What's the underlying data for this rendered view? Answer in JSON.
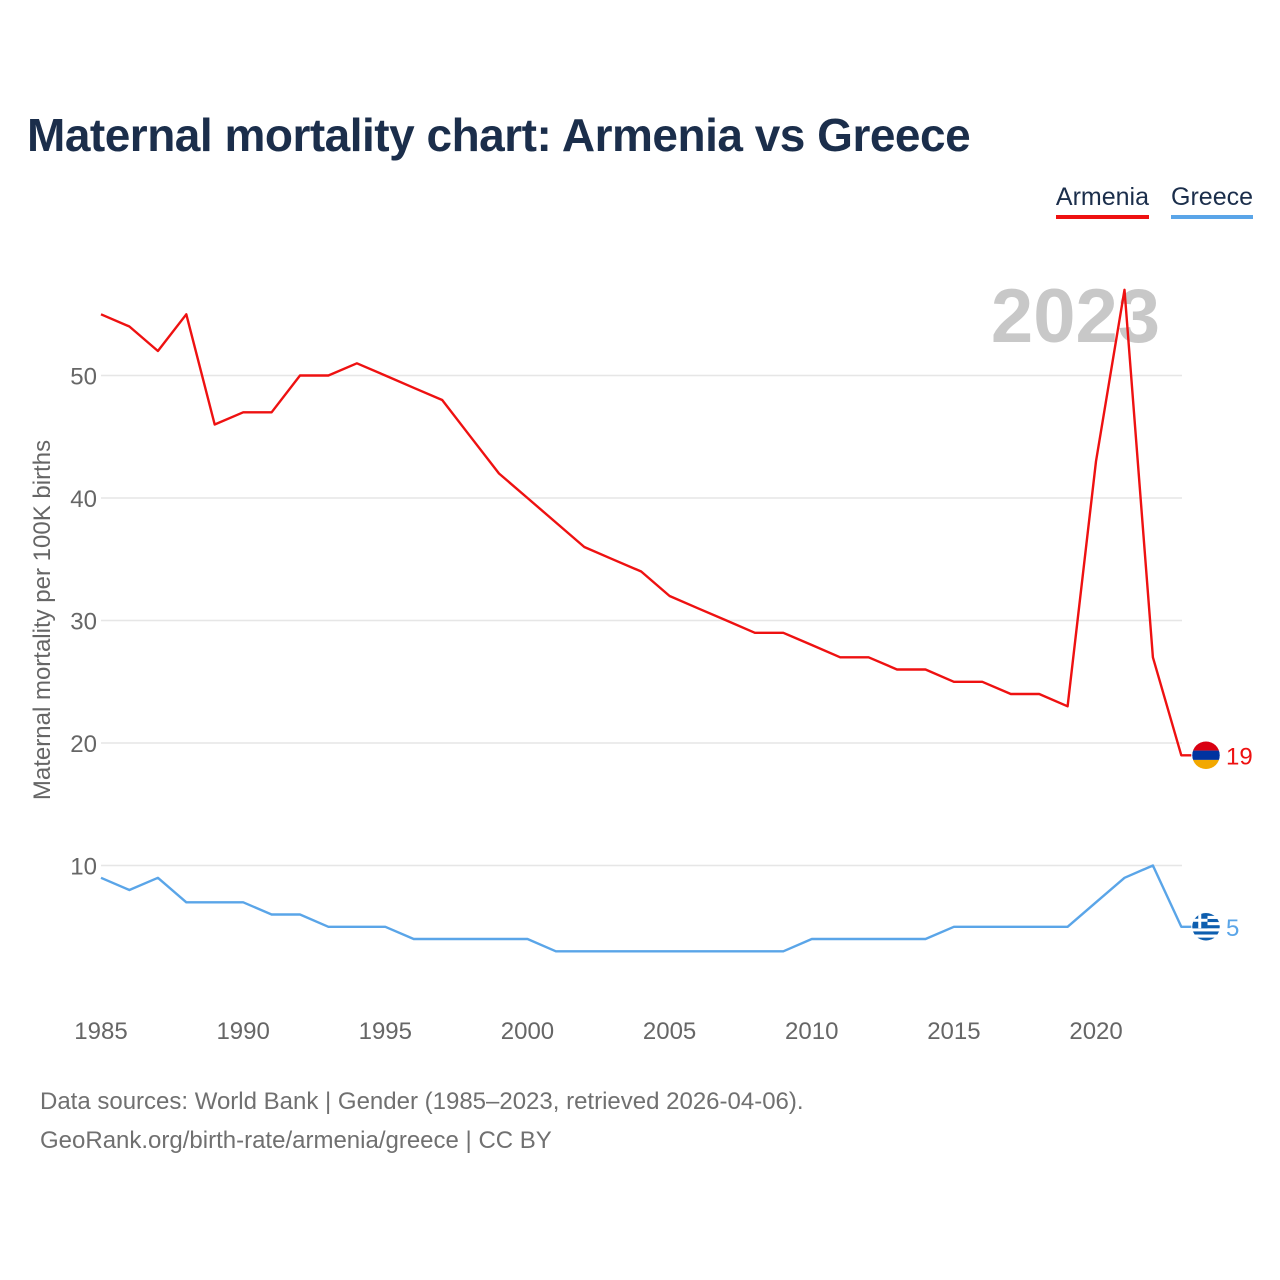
{
  "title": "Maternal mortality chart: Armenia vs Greece",
  "legend": {
    "armenia": "Armenia",
    "greece": "Greece"
  },
  "colors": {
    "armenia": "#ee1111",
    "greece": "#5aa5e8",
    "grid": "#e6e6e6",
    "year": "#c8c8c8",
    "text": "#666666"
  },
  "watermark_year": "2023",
  "sources": {
    "line1": "Data sources: World Bank | Gender (1985–2023, retrieved 2026-04-06).",
    "line2": "GeoRank.org/birth-rate/armenia/greece | CC BY"
  },
  "chart_data": {
    "type": "line",
    "title": "Maternal mortality chart: Armenia vs Greece",
    "xlabel": "",
    "ylabel": "Maternal mortality per 100K births",
    "xlim": [
      1985,
      2023
    ],
    "ylim": [
      0,
      55
    ],
    "yticks": [
      10,
      20,
      30,
      40,
      50
    ],
    "xticks": [
      1985,
      1990,
      1995,
      2000,
      2005,
      2010,
      2015,
      2020
    ],
    "x": [
      1985,
      1986,
      1987,
      1988,
      1989,
      1990,
      1991,
      1992,
      1993,
      1994,
      1995,
      1996,
      1997,
      1998,
      1999,
      2000,
      2001,
      2002,
      2003,
      2004,
      2005,
      2006,
      2007,
      2008,
      2009,
      2010,
      2011,
      2012,
      2013,
      2014,
      2015,
      2016,
      2017,
      2018,
      2019,
      2020,
      2021,
      2022,
      2023
    ],
    "series": [
      {
        "name": "Armenia",
        "end_label": "19",
        "values": [
          55,
          54,
          52,
          55,
          46,
          47,
          47,
          50,
          50,
          51,
          50,
          49,
          48,
          45,
          42,
          40,
          38,
          36,
          35,
          34,
          32,
          31,
          30,
          29,
          29,
          28,
          27,
          27,
          26,
          26,
          25,
          25,
          24,
          24,
          23,
          43,
          57,
          27,
          19
        ]
      },
      {
        "name": "Greece",
        "end_label": "5",
        "values": [
          9,
          8,
          9,
          7,
          7,
          7,
          6,
          6,
          5,
          5,
          5,
          4,
          4,
          4,
          4,
          4,
          3,
          3,
          3,
          3,
          3,
          3,
          3,
          3,
          3,
          4,
          4,
          4,
          4,
          4,
          5,
          5,
          5,
          5,
          5,
          7,
          9,
          10,
          5
        ]
      }
    ],
    "legend_position": "top-right"
  }
}
